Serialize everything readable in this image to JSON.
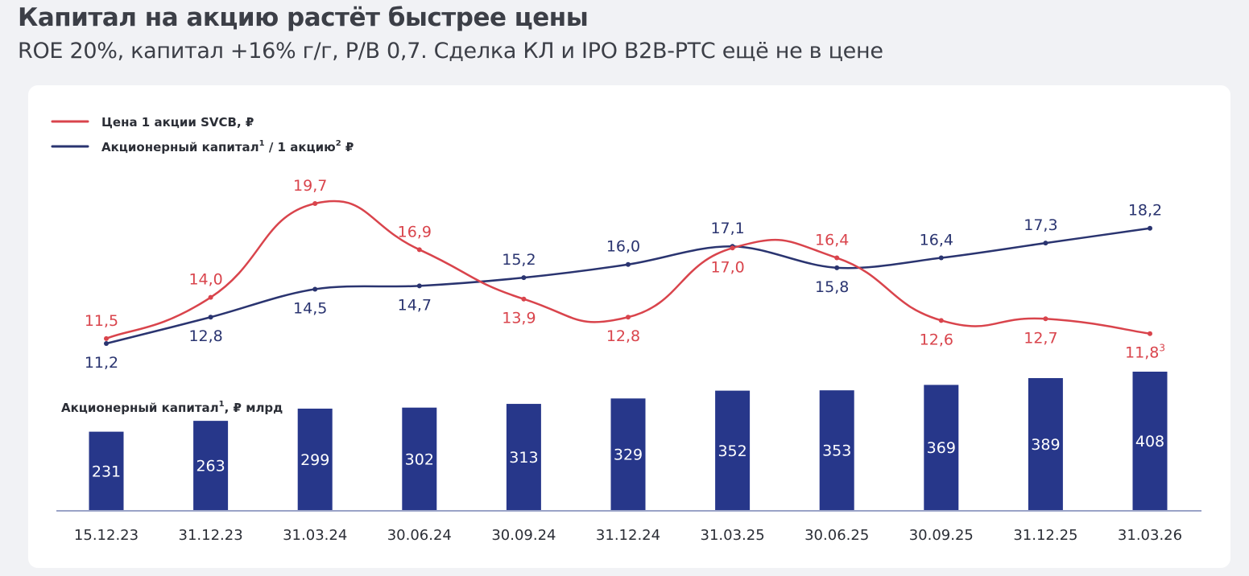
{
  "header": {
    "title": "Капитал на акцию растёт быстрее цены",
    "subtitle": "ROE 20%, капитал +16% г/г, P/B 0,7. Сделка КЛ и IPO B2B-РТС ещё не в цене"
  },
  "colors": {
    "price": "#d9444c",
    "equity": "#2a3470",
    "bars": "#27378a",
    "axis": "#9aa3c7"
  },
  "legend": {
    "price_label": "Цена 1 акции SVCB, ₽",
    "equity_label_main": "Акционерный капитал",
    "equity_label_sup1": "1",
    "equity_label_mid": " / 1 акцию",
    "equity_label_sup2": "2",
    "equity_label_end": " ₽"
  },
  "bar_section": {
    "label_main": "Акционерный капитал",
    "label_sup": "1",
    "label_end": ", ₽ млрд"
  },
  "chart_data": [
    {
      "type": "line",
      "categories": [
        "15.12.23",
        "31.12.23",
        "31.03.24",
        "30.06.24",
        "30.09.24",
        "31.12.24",
        "31.03.25",
        "30.06.25",
        "30.09.25",
        "31.12.25",
        "31.03.26"
      ],
      "series": [
        {
          "name": "Цена 1 акции SVCB, ₽",
          "values": [
            11.5,
            14.0,
            19.7,
            16.9,
            13.9,
            12.8,
            17.0,
            16.4,
            12.6,
            12.7,
            11.8
          ],
          "labels": [
            "11,5",
            "14,0",
            "19,7",
            "16,9",
            "13,9",
            "12,8",
            "17,0",
            "16,4",
            "12,6",
            "12,7",
            "11,8"
          ],
          "last_label_sup": "3"
        },
        {
          "name": "Акционерный капитал / 1 акцию ₽",
          "values": [
            11.2,
            12.8,
            14.5,
            14.7,
            15.2,
            16.0,
            17.1,
            15.8,
            16.4,
            17.3,
            18.2
          ],
          "labels": [
            "11,2",
            "12,8",
            "14,5",
            "14,7",
            "15,2",
            "16,0",
            "17,1",
            "15,8",
            "16,4",
            "17,3",
            "18,2"
          ]
        }
      ]
    },
    {
      "type": "bar",
      "title": "Акционерный капитал, ₽ млрд",
      "categories": [
        "15.12.23",
        "31.12.23",
        "31.03.24",
        "30.06.24",
        "30.09.24",
        "31.12.24",
        "31.03.25",
        "30.06.25",
        "30.09.25",
        "31.12.25",
        "31.03.26"
      ],
      "values": [
        231,
        263,
        299,
        302,
        313,
        329,
        352,
        353,
        369,
        389,
        408
      ],
      "labels": [
        "231",
        "263",
        "299",
        "302",
        "313",
        "329",
        "352",
        "353",
        "369",
        "389",
        "408"
      ]
    }
  ]
}
